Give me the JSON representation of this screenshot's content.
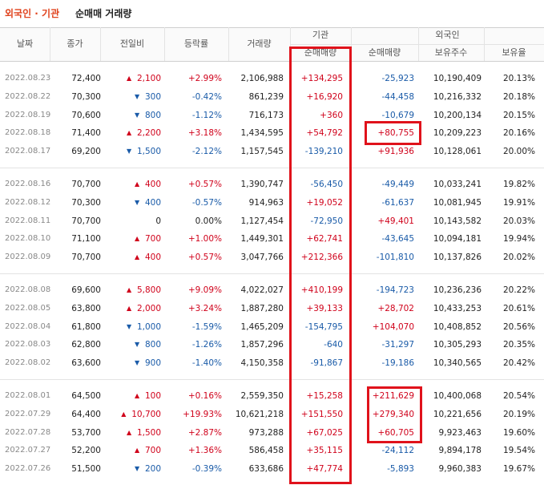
{
  "header": {
    "title_highlight": "외국인 · 기관",
    "title": "순매매 거래량"
  },
  "table": {
    "columns": [
      "날짜",
      "종가",
      "전일비",
      "등락률",
      "거래량"
    ],
    "groups": [
      {
        "label": "기관",
        "sub": [
          "순매매량"
        ]
      },
      {
        "label": "외국인",
        "sub": [
          "순매매량",
          "보유주수",
          "보유율"
        ]
      }
    ],
    "sections": [
      [
        {
          "date": "2022.08.23",
          "close": "72,400",
          "dir": "up",
          "change": "2,100",
          "rate": "+2.99%",
          "volume": "2,106,988",
          "inst": "+134,295",
          "foreign": "-25,923",
          "holdings": "10,190,409",
          "ratio": "20.13%"
        },
        {
          "date": "2022.08.22",
          "close": "70,300",
          "dir": "down",
          "change": "300",
          "rate": "-0.42%",
          "volume": "861,239",
          "inst": "+16,920",
          "foreign": "-44,458",
          "holdings": "10,216,332",
          "ratio": "20.18%"
        },
        {
          "date": "2022.08.19",
          "close": "70,600",
          "dir": "down",
          "change": "800",
          "rate": "-1.12%",
          "volume": "716,173",
          "inst": "+360",
          "foreign": "-10,679",
          "holdings": "10,200,134",
          "ratio": "20.15%"
        },
        {
          "date": "2022.08.18",
          "close": "71,400",
          "dir": "up",
          "change": "2,200",
          "rate": "+3.18%",
          "volume": "1,434,595",
          "inst": "+54,792",
          "foreign": "+80,755",
          "holdings": "10,209,223",
          "ratio": "20.16%"
        },
        {
          "date": "2022.08.17",
          "close": "69,200",
          "dir": "down",
          "change": "1,500",
          "rate": "-2.12%",
          "volume": "1,157,545",
          "inst": "-139,210",
          "foreign": "+91,936",
          "holdings": "10,128,061",
          "ratio": "20.00%"
        }
      ],
      [
        {
          "date": "2022.08.16",
          "close": "70,700",
          "dir": "up",
          "change": "400",
          "rate": "+0.57%",
          "volume": "1,390,747",
          "inst": "-56,450",
          "foreign": "-49,449",
          "holdings": "10,033,241",
          "ratio": "19.82%"
        },
        {
          "date": "2022.08.12",
          "close": "70,300",
          "dir": "down",
          "change": "400",
          "rate": "-0.57%",
          "volume": "914,963",
          "inst": "+19,052",
          "foreign": "-61,637",
          "holdings": "10,081,945",
          "ratio": "19.91%"
        },
        {
          "date": "2022.08.11",
          "close": "70,700",
          "dir": "flat",
          "change": "0",
          "rate": "0.00%",
          "volume": "1,127,454",
          "inst": "-72,950",
          "foreign": "+49,401",
          "holdings": "10,143,582",
          "ratio": "20.03%"
        },
        {
          "date": "2022.08.10",
          "close": "71,100",
          "dir": "up",
          "change": "700",
          "rate": "+1.00%",
          "volume": "1,449,301",
          "inst": "+62,741",
          "foreign": "-43,645",
          "holdings": "10,094,181",
          "ratio": "19.94%"
        },
        {
          "date": "2022.08.09",
          "close": "70,700",
          "dir": "up",
          "change": "400",
          "rate": "+0.57%",
          "volume": "3,047,766",
          "inst": "+212,366",
          "foreign": "-101,810",
          "holdings": "10,137,826",
          "ratio": "20.02%"
        }
      ],
      [
        {
          "date": "2022.08.08",
          "close": "69,600",
          "dir": "up",
          "change": "5,800",
          "rate": "+9.09%",
          "volume": "4,022,027",
          "inst": "+410,199",
          "foreign": "-194,723",
          "holdings": "10,236,236",
          "ratio": "20.22%"
        },
        {
          "date": "2022.08.05",
          "close": "63,800",
          "dir": "up",
          "change": "2,000",
          "rate": "+3.24%",
          "volume": "1,887,280",
          "inst": "+39,133",
          "foreign": "+28,702",
          "holdings": "10,433,253",
          "ratio": "20.61%"
        },
        {
          "date": "2022.08.04",
          "close": "61,800",
          "dir": "down",
          "change": "1,000",
          "rate": "-1.59%",
          "volume": "1,465,209",
          "inst": "-154,795",
          "foreign": "+104,070",
          "holdings": "10,408,852",
          "ratio": "20.56%"
        },
        {
          "date": "2022.08.03",
          "close": "62,800",
          "dir": "down",
          "change": "800",
          "rate": "-1.26%",
          "volume": "1,857,296",
          "inst": "-640",
          "foreign": "-31,297",
          "holdings": "10,305,293",
          "ratio": "20.35%"
        },
        {
          "date": "2022.08.02",
          "close": "63,600",
          "dir": "down",
          "change": "900",
          "rate": "-1.40%",
          "volume": "4,150,358",
          "inst": "-91,867",
          "foreign": "-19,186",
          "holdings": "10,340,565",
          "ratio": "20.42%"
        }
      ],
      [
        {
          "date": "2022.08.01",
          "close": "64,500",
          "dir": "up",
          "change": "100",
          "rate": "+0.16%",
          "volume": "2,559,350",
          "inst": "+15,258",
          "foreign": "+211,629",
          "holdings": "10,400,068",
          "ratio": "20.54%"
        },
        {
          "date": "2022.07.29",
          "close": "64,400",
          "dir": "up",
          "change": "10,700",
          "rate": "+19.93%",
          "volume": "10,621,218",
          "inst": "+151,550",
          "foreign": "+279,340",
          "holdings": "10,221,656",
          "ratio": "20.19%"
        },
        {
          "date": "2022.07.28",
          "close": "53,700",
          "dir": "up",
          "change": "1,500",
          "rate": "+2.87%",
          "volume": "973,288",
          "inst": "+67,025",
          "foreign": "+60,705",
          "holdings": "9,923,463",
          "ratio": "19.60%"
        },
        {
          "date": "2022.07.27",
          "close": "52,200",
          "dir": "up",
          "change": "700",
          "rate": "+1.36%",
          "volume": "586,458",
          "inst": "+35,115",
          "foreign": "-24,112",
          "holdings": "9,894,178",
          "ratio": "19.54%"
        },
        {
          "date": "2022.07.26",
          "close": "51,500",
          "dir": "down",
          "change": "200",
          "rate": "-0.39%",
          "volume": "633,686",
          "inst": "+47,774",
          "foreign": "-5,893",
          "holdings": "9,960,383",
          "ratio": "19.67%"
        }
      ]
    ]
  }
}
